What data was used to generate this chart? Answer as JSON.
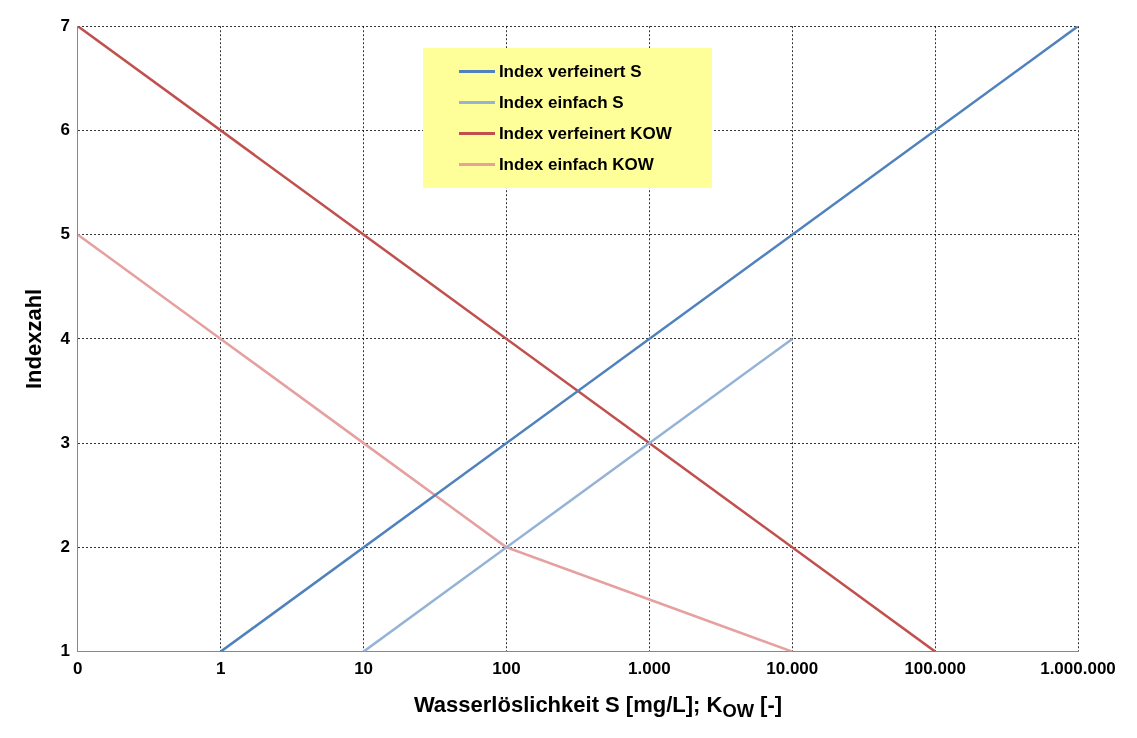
{
  "chart_data": {
    "type": "line",
    "xlabel": "Wasserlöslichkeit S [mg/L]; K$_{OW}$ [-]",
    "ylabel": "Indexzahl",
    "log": "x",
    "xlim": [
      0.1,
      1000000
    ],
    "ylim": [
      1,
      7
    ],
    "xticks": [
      {
        "value": 0.1,
        "label": "0"
      },
      1,
      10,
      100,
      {
        "value": 1000,
        "label": "1.000"
      },
      {
        "value": 10000,
        "label": "10.000"
      },
      {
        "value": 100000,
        "label": "100.000"
      },
      {
        "value": 1000000,
        "label": "1.000.000"
      }
    ],
    "yticks": [
      1,
      2,
      3,
      4,
      5,
      6,
      7
    ],
    "grid": true,
    "legend": "top",
    "series": [
      {
        "name": "Index verfeinert S",
        "color": "#4f81bd",
        "x": [
          1,
          1000000
        ],
        "values": [
          1,
          7
        ]
      },
      {
        "name": "Index einfach S",
        "color": "#95b3d7",
        "x": [
          10,
          10000
        ],
        "values": [
          1,
          4
        ]
      },
      {
        "name": "Index verfeinert KOW",
        "color": "#c0504d",
        "x": [
          0.1,
          100000
        ],
        "values": [
          7,
          1
        ]
      },
      {
        "name": "Index einfach KOW",
        "color": "#e6a0a0",
        "x": [
          0.1,
          1,
          10,
          100,
          1000,
          10000
        ],
        "values": [
          5,
          4,
          3,
          2,
          1.5,
          1
        ]
      }
    ]
  }
}
